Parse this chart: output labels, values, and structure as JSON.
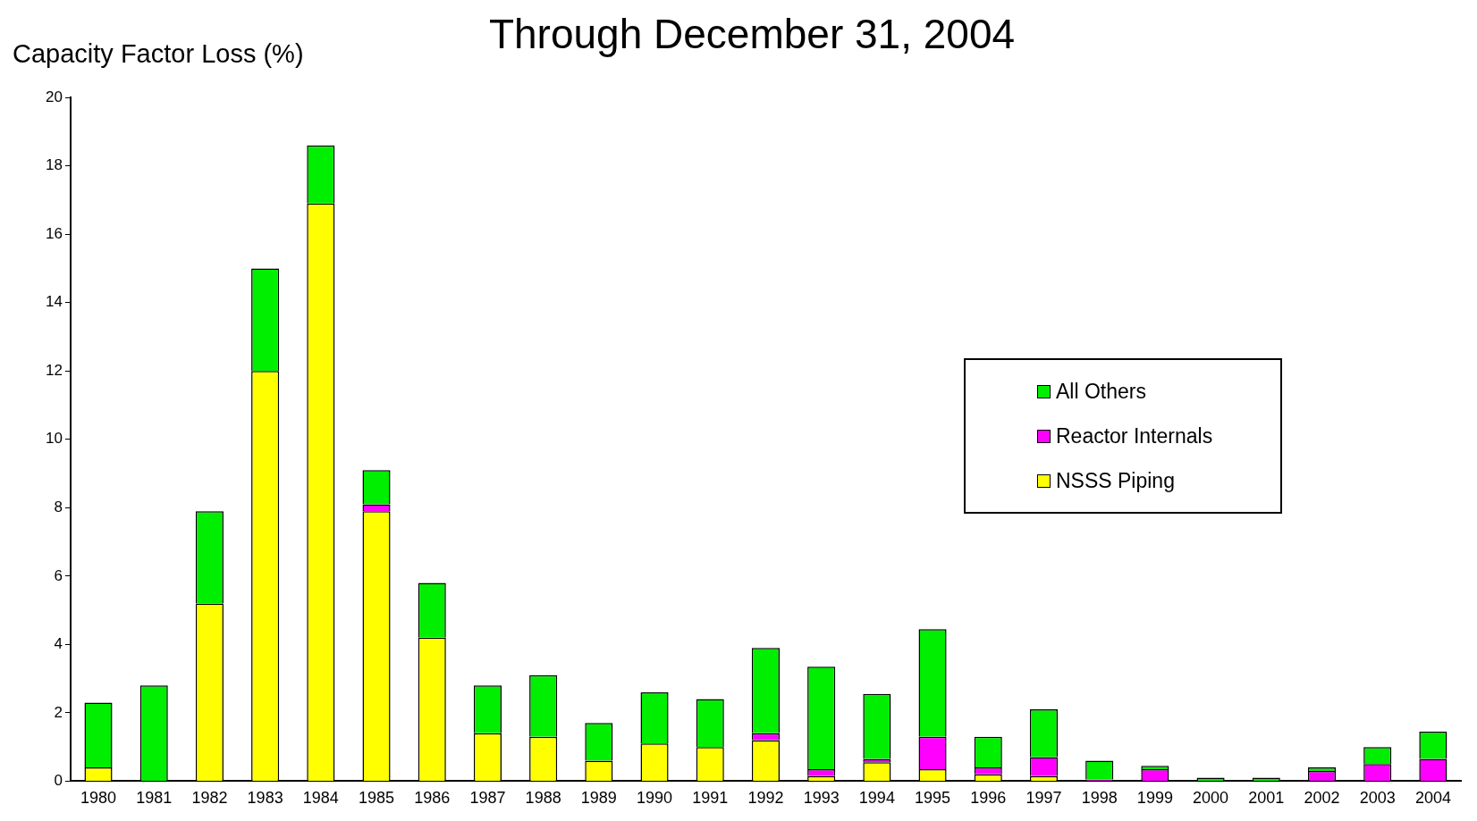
{
  "chart_data": {
    "type": "bar",
    "title": "Through December 31, 2004",
    "ylabel": "Capacity Factor Loss (%)",
    "categories": [
      "1980",
      "1981",
      "1982",
      "1983",
      "1984",
      "1985",
      "1986",
      "1987",
      "1988",
      "1989",
      "1990",
      "1991",
      "1992",
      "1993",
      "1994",
      "1995",
      "1996",
      "1997",
      "1998",
      "1999",
      "2000",
      "2001",
      "2002",
      "2003",
      "2004"
    ],
    "stacked": true,
    "ylim": [
      0,
      20
    ],
    "yticks": [
      0,
      2,
      4,
      6,
      8,
      10,
      12,
      14,
      16,
      18,
      20
    ],
    "grid": false,
    "legend": "right",
    "series": [
      {
        "name": "NSSS Piping",
        "color": "#ffff00",
        "values": [
          0.4,
          0,
          5.2,
          12,
          16.9,
          7.9,
          4.2,
          1.4,
          1.3,
          0.6,
          1.1,
          1.0,
          1.2,
          0.15,
          0.55,
          0.35,
          0.2,
          0.15,
          0,
          0,
          0,
          0,
          0,
          0,
          0
        ]
      },
      {
        "name": "Reactor Internals",
        "color": "#ff00ff",
        "values": [
          0,
          0,
          0,
          0,
          0,
          0.2,
          0,
          0,
          0,
          0,
          0,
          0,
          0.2,
          0.2,
          0.1,
          0.95,
          0.2,
          0.55,
          0.05,
          0.35,
          0,
          0,
          0.3,
          0.5,
          0.65
        ]
      },
      {
        "name": "All Others",
        "color": "#00ee00",
        "values": [
          1.9,
          2.8,
          2.7,
          3,
          1.7,
          1.0,
          1.6,
          1.4,
          1.8,
          1.1,
          1.5,
          1.4,
          2.5,
          3.0,
          1.9,
          3.15,
          0.9,
          1.4,
          0.55,
          0.1,
          0.1,
          0.1,
          0.1,
          0.5,
          0.8
        ]
      }
    ]
  }
}
